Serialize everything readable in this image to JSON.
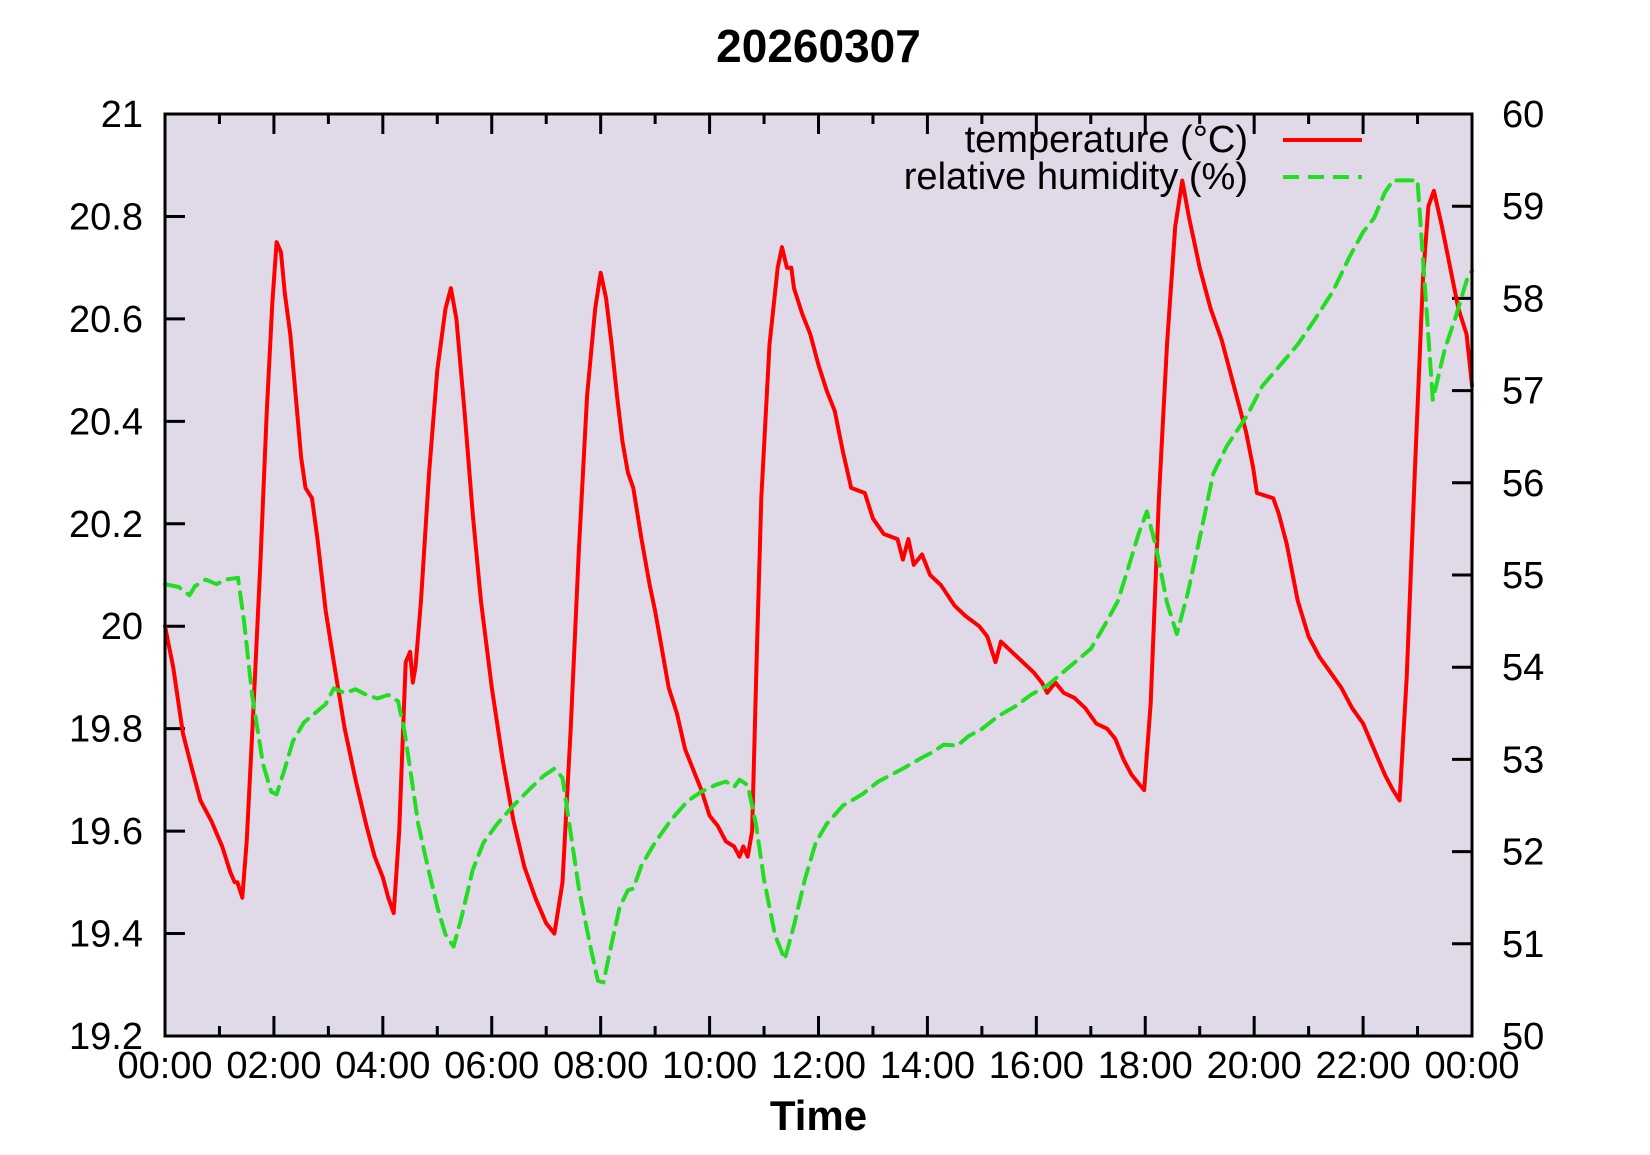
{
  "chart_data": {
    "type": "line",
    "title": "20260307",
    "xlabel": "Time",
    "plot_background": "#e0dae8",
    "frame_color": "#000000",
    "grid": false,
    "x_axis": {
      "range_hours": [
        0,
        24
      ],
      "major_tick_every_hours": 2,
      "minor_tick_every_hours": 1,
      "tick_labels": [
        "00:00",
        "02:00",
        "04:00",
        "06:00",
        "08:00",
        "10:00",
        "12:00",
        "14:00",
        "16:00",
        "18:00",
        "20:00",
        "22:00",
        "00:00"
      ]
    },
    "y_left": {
      "name": "temperature (°C)",
      "range": [
        19.2,
        21
      ],
      "tick_values": [
        21,
        20.8,
        20.6,
        20.4,
        20.2,
        20,
        19.8,
        19.6,
        19.4,
        19.2
      ],
      "tick_labels": [
        "21",
        "20.8",
        "20.6",
        "20.4",
        "20.2",
        "20",
        "19.8",
        "19.6",
        "19.4",
        "19.2"
      ]
    },
    "y_right": {
      "name": "relative humidity (%)",
      "range": [
        50,
        60
      ],
      "tick_values": [
        60,
        59,
        58,
        57,
        56,
        55,
        54,
        53,
        52,
        51,
        50
      ],
      "tick_labels": [
        "60",
        "59",
        "58",
        "57",
        "56",
        "55",
        "54",
        "53",
        "52",
        "51",
        "50"
      ]
    },
    "legend": {
      "position": "top-right",
      "entries": [
        {
          "label": "temperature (°C)",
          "color": "#ff0000",
          "style": "solid"
        },
        {
          "label": "relative humidity (%)",
          "color": "#22dd22",
          "style": "dashed"
        }
      ]
    },
    "series": [
      {
        "name": "temperature (°C)",
        "axis": "left",
        "color": "#ff0000",
        "style": "solid",
        "points": [
          [
            0,
            20.0
          ],
          [
            0.15,
            19.92
          ],
          [
            0.33,
            19.79
          ],
          [
            0.5,
            19.72
          ],
          [
            0.65,
            19.66
          ],
          [
            0.85,
            19.62
          ],
          [
            1.05,
            19.57
          ],
          [
            1.2,
            19.52
          ],
          [
            1.28,
            19.5
          ],
          [
            1.33,
            19.5
          ],
          [
            1.42,
            19.47
          ],
          [
            1.5,
            19.58
          ],
          [
            1.62,
            19.83
          ],
          [
            1.75,
            20.12
          ],
          [
            1.87,
            20.42
          ],
          [
            1.97,
            20.63
          ],
          [
            2.05,
            20.75
          ],
          [
            2.13,
            20.73
          ],
          [
            2.2,
            20.65
          ],
          [
            2.3,
            20.57
          ],
          [
            2.4,
            20.45
          ],
          [
            2.5,
            20.33
          ],
          [
            2.58,
            20.27
          ],
          [
            2.7,
            20.25
          ],
          [
            2.8,
            20.17
          ],
          [
            2.95,
            20.03
          ],
          [
            3.1,
            19.93
          ],
          [
            3.3,
            19.8
          ],
          [
            3.5,
            19.7
          ],
          [
            3.7,
            19.61
          ],
          [
            3.85,
            19.55
          ],
          [
            4.0,
            19.51
          ],
          [
            4.1,
            19.47
          ],
          [
            4.2,
            19.44
          ],
          [
            4.3,
            19.6
          ],
          [
            4.42,
            19.93
          ],
          [
            4.5,
            19.95
          ],
          [
            4.55,
            19.89
          ],
          [
            4.6,
            19.92
          ],
          [
            4.7,
            20.05
          ],
          [
            4.85,
            20.3
          ],
          [
            5.0,
            20.5
          ],
          [
            5.15,
            20.62
          ],
          [
            5.25,
            20.66
          ],
          [
            5.35,
            20.6
          ],
          [
            5.5,
            20.42
          ],
          [
            5.65,
            20.22
          ],
          [
            5.8,
            20.05
          ],
          [
            6.0,
            19.88
          ],
          [
            6.2,
            19.74
          ],
          [
            6.4,
            19.62
          ],
          [
            6.6,
            19.53
          ],
          [
            6.8,
            19.47
          ],
          [
            7.0,
            19.42
          ],
          [
            7.15,
            19.4
          ],
          [
            7.3,
            19.5
          ],
          [
            7.45,
            19.8
          ],
          [
            7.6,
            20.15
          ],
          [
            7.75,
            20.45
          ],
          [
            7.9,
            20.62
          ],
          [
            8.0,
            20.69
          ],
          [
            8.1,
            20.64
          ],
          [
            8.2,
            20.55
          ],
          [
            8.3,
            20.45
          ],
          [
            8.4,
            20.36
          ],
          [
            8.5,
            20.3
          ],
          [
            8.6,
            20.27
          ],
          [
            8.75,
            20.17
          ],
          [
            8.9,
            20.08
          ],
          [
            9.0,
            20.03
          ],
          [
            9.1,
            19.97
          ],
          [
            9.25,
            19.88
          ],
          [
            9.4,
            19.83
          ],
          [
            9.55,
            19.76
          ],
          [
            9.7,
            19.72
          ],
          [
            9.85,
            19.68
          ],
          [
            10.0,
            19.63
          ],
          [
            10.15,
            19.61
          ],
          [
            10.3,
            19.58
          ],
          [
            10.45,
            19.57
          ],
          [
            10.55,
            19.55
          ],
          [
            10.62,
            19.57
          ],
          [
            10.7,
            19.55
          ],
          [
            10.78,
            19.6
          ],
          [
            10.87,
            19.96
          ],
          [
            10.95,
            20.25
          ],
          [
            11.1,
            20.55
          ],
          [
            11.25,
            20.7
          ],
          [
            11.33,
            20.74
          ],
          [
            11.42,
            20.7
          ],
          [
            11.5,
            20.7
          ],
          [
            11.55,
            20.66
          ],
          [
            11.7,
            20.61
          ],
          [
            11.85,
            20.57
          ],
          [
            12.0,
            20.51
          ],
          [
            12.15,
            20.46
          ],
          [
            12.3,
            20.42
          ],
          [
            12.45,
            20.34
          ],
          [
            12.6,
            20.27
          ],
          [
            12.85,
            20.26
          ],
          [
            13.0,
            20.21
          ],
          [
            13.2,
            20.18
          ],
          [
            13.45,
            20.17
          ],
          [
            13.55,
            20.13
          ],
          [
            13.65,
            20.17
          ],
          [
            13.75,
            20.12
          ],
          [
            13.9,
            20.14
          ],
          [
            14.05,
            20.1
          ],
          [
            14.25,
            20.08
          ],
          [
            14.5,
            20.04
          ],
          [
            14.7,
            20.02
          ],
          [
            14.95,
            20.0
          ],
          [
            15.1,
            19.98
          ],
          [
            15.25,
            19.93
          ],
          [
            15.35,
            19.97
          ],
          [
            15.55,
            19.95
          ],
          [
            15.75,
            19.93
          ],
          [
            15.95,
            19.91
          ],
          [
            16.1,
            19.89
          ],
          [
            16.2,
            19.87
          ],
          [
            16.35,
            19.89
          ],
          [
            16.5,
            19.87
          ],
          [
            16.7,
            19.86
          ],
          [
            16.9,
            19.84
          ],
          [
            17.1,
            19.81
          ],
          [
            17.3,
            19.8
          ],
          [
            17.45,
            19.78
          ],
          [
            17.6,
            19.74
          ],
          [
            17.75,
            19.71
          ],
          [
            17.9,
            19.69
          ],
          [
            17.98,
            19.68
          ],
          [
            18.1,
            19.85
          ],
          [
            18.25,
            20.25
          ],
          [
            18.4,
            20.55
          ],
          [
            18.55,
            20.78
          ],
          [
            18.68,
            20.87
          ],
          [
            18.8,
            20.8
          ],
          [
            19.0,
            20.7
          ],
          [
            19.2,
            20.62
          ],
          [
            19.4,
            20.56
          ],
          [
            19.6,
            20.48
          ],
          [
            19.7,
            20.44
          ],
          [
            19.85,
            20.38
          ],
          [
            19.98,
            20.31
          ],
          [
            20.05,
            20.26
          ],
          [
            20.35,
            20.25
          ],
          [
            20.45,
            20.22
          ],
          [
            20.6,
            20.16
          ],
          [
            20.8,
            20.05
          ],
          [
            21.0,
            19.98
          ],
          [
            21.2,
            19.94
          ],
          [
            21.4,
            19.91
          ],
          [
            21.6,
            19.88
          ],
          [
            21.8,
            19.84
          ],
          [
            22.0,
            19.81
          ],
          [
            22.2,
            19.76
          ],
          [
            22.4,
            19.71
          ],
          [
            22.55,
            19.68
          ],
          [
            22.67,
            19.66
          ],
          [
            22.8,
            19.9
          ],
          [
            22.95,
            20.3
          ],
          [
            23.1,
            20.68
          ],
          [
            23.2,
            20.82
          ],
          [
            23.3,
            20.85
          ],
          [
            23.45,
            20.78
          ],
          [
            23.6,
            20.7
          ],
          [
            23.75,
            20.62
          ],
          [
            23.9,
            20.57
          ],
          [
            24.0,
            20.47
          ]
        ]
      },
      {
        "name": "relative humidity (%)",
        "axis": "right",
        "color": "#22dd22",
        "style": "dashed",
        "points": [
          [
            0,
            54.9
          ],
          [
            0.25,
            54.87
          ],
          [
            0.45,
            54.78
          ],
          [
            0.55,
            54.88
          ],
          [
            0.75,
            54.95
          ],
          [
            0.95,
            54.9
          ],
          [
            1.1,
            54.95
          ],
          [
            1.34,
            54.97
          ],
          [
            1.45,
            54.5
          ],
          [
            1.6,
            53.7
          ],
          [
            1.8,
            52.95
          ],
          [
            1.95,
            52.65
          ],
          [
            2.05,
            52.62
          ],
          [
            2.2,
            52.9
          ],
          [
            2.35,
            53.2
          ],
          [
            2.55,
            53.4
          ],
          [
            2.75,
            53.5
          ],
          [
            2.95,
            53.6
          ],
          [
            3.1,
            53.77
          ],
          [
            3.3,
            53.72
          ],
          [
            3.5,
            53.76
          ],
          [
            3.7,
            53.7
          ],
          [
            3.9,
            53.66
          ],
          [
            4.1,
            53.7
          ],
          [
            4.28,
            53.63
          ],
          [
            4.4,
            53.3
          ],
          [
            4.55,
            52.7
          ],
          [
            4.65,
            52.3
          ],
          [
            4.8,
            51.9
          ],
          [
            5.0,
            51.4
          ],
          [
            5.15,
            51.1
          ],
          [
            5.3,
            50.97
          ],
          [
            5.45,
            51.3
          ],
          [
            5.65,
            51.8
          ],
          [
            5.85,
            52.1
          ],
          [
            6.1,
            52.3
          ],
          [
            6.4,
            52.5
          ],
          [
            6.7,
            52.68
          ],
          [
            6.95,
            52.82
          ],
          [
            7.15,
            52.9
          ],
          [
            7.3,
            52.8
          ],
          [
            7.45,
            52.2
          ],
          [
            7.6,
            51.6
          ],
          [
            7.8,
            51.0
          ],
          [
            7.95,
            50.6
          ],
          [
            8.05,
            50.58
          ],
          [
            8.2,
            51.0
          ],
          [
            8.35,
            51.4
          ],
          [
            8.5,
            51.58
          ],
          [
            8.6,
            51.6
          ],
          [
            8.75,
            51.85
          ],
          [
            9.0,
            52.1
          ],
          [
            9.3,
            52.35
          ],
          [
            9.6,
            52.55
          ],
          [
            9.85,
            52.65
          ],
          [
            10.1,
            52.72
          ],
          [
            10.3,
            52.76
          ],
          [
            10.45,
            52.7
          ],
          [
            10.55,
            52.78
          ],
          [
            10.7,
            52.72
          ],
          [
            10.85,
            52.3
          ],
          [
            11.0,
            51.7
          ],
          [
            11.2,
            51.1
          ],
          [
            11.38,
            50.83
          ],
          [
            11.55,
            51.2
          ],
          [
            11.75,
            51.7
          ],
          [
            11.95,
            52.1
          ],
          [
            12.15,
            52.3
          ],
          [
            12.45,
            52.5
          ],
          [
            12.8,
            52.62
          ],
          [
            13.1,
            52.76
          ],
          [
            13.55,
            52.9
          ],
          [
            13.9,
            53.02
          ],
          [
            14.1,
            53.08
          ],
          [
            14.3,
            53.16
          ],
          [
            14.55,
            53.15
          ],
          [
            14.75,
            53.25
          ],
          [
            15.0,
            53.33
          ],
          [
            15.3,
            53.47
          ],
          [
            15.6,
            53.57
          ],
          [
            15.9,
            53.7
          ],
          [
            16.2,
            53.8
          ],
          [
            16.5,
            53.95
          ],
          [
            16.8,
            54.1
          ],
          [
            17.0,
            54.2
          ],
          [
            17.25,
            54.45
          ],
          [
            17.5,
            54.72
          ],
          [
            17.7,
            55.1
          ],
          [
            17.88,
            55.45
          ],
          [
            18.03,
            55.69
          ],
          [
            18.2,
            55.3
          ],
          [
            18.4,
            54.7
          ],
          [
            18.58,
            54.36
          ],
          [
            18.78,
            54.8
          ],
          [
            19.0,
            55.4
          ],
          [
            19.25,
            56.1
          ],
          [
            19.5,
            56.4
          ],
          [
            19.87,
            56.73
          ],
          [
            20.15,
            57.05
          ],
          [
            20.47,
            57.27
          ],
          [
            20.8,
            57.5
          ],
          [
            21.1,
            57.76
          ],
          [
            21.45,
            58.08
          ],
          [
            21.75,
            58.45
          ],
          [
            22.0,
            58.72
          ],
          [
            22.2,
            58.87
          ],
          [
            22.4,
            59.15
          ],
          [
            22.55,
            59.28
          ],
          [
            23.0,
            59.28
          ],
          [
            23.28,
            56.9
          ],
          [
            23.5,
            57.45
          ],
          [
            23.7,
            57.8
          ],
          [
            23.93,
            58.25
          ],
          [
            24.0,
            58.3
          ]
        ]
      }
    ]
  }
}
